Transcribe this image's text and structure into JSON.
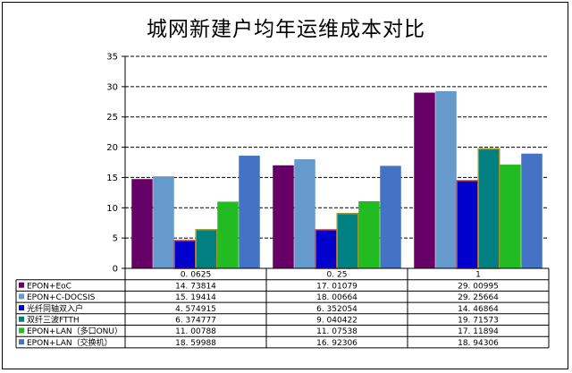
{
  "chart_data": {
    "type": "bar",
    "title": "城网新建户均年运维成本对比",
    "xlabel": "",
    "ylabel": "",
    "ylim": [
      0,
      35
    ],
    "yticks": [
      0,
      5,
      10,
      15,
      20,
      25,
      30,
      35
    ],
    "grid": true,
    "legend": "data-table",
    "categories": [
      "0.0625",
      "0.25",
      "1"
    ],
    "category_labels": [
      "0. 0625",
      "0. 25",
      "1"
    ],
    "series": [
      {
        "name": "EPON+EoC",
        "color": "#660066",
        "values": [
          14.73814,
          17.01079,
          29.00995
        ],
        "labels": [
          "14. 73814",
          "17. 01079",
          "29. 00995"
        ]
      },
      {
        "name": "EPON+C-DOCSIS",
        "color": "#6699CC",
        "values": [
          15.19414,
          18.00664,
          29.25664
        ],
        "labels": [
          "15. 19414",
          "18. 00664",
          "29. 25664"
        ]
      },
      {
        "name": "光纤同轴双入户",
        "color": "#0000CC",
        "border": "#CC3333",
        "values": [
          4.574915,
          6.352054,
          14.46864
        ],
        "labels": [
          "4. 574915",
          "6. 352054",
          "14. 46864"
        ]
      },
      {
        "name": "双纤三波FTTH",
        "color": "#008080",
        "border": "#999933",
        "values": [
          6.374777,
          9.040422,
          19.71573
        ],
        "labels": [
          "6. 374777",
          "9. 040422",
          "19. 71573"
        ]
      },
      {
        "name": "EPON+LAN（多口ONU）",
        "color": "#22BB22",
        "values": [
          11.00788,
          11.07538,
          17.11894
        ],
        "labels": [
          "11. 00788",
          "11. 07538",
          "17. 11894"
        ]
      },
      {
        "name": "EPON+LAN（交换机）",
        "color": "#4472C4",
        "values": [
          18.59988,
          16.92306,
          18.94306
        ],
        "labels": [
          "18. 59988",
          "16. 92306",
          "18. 94306"
        ]
      }
    ]
  }
}
